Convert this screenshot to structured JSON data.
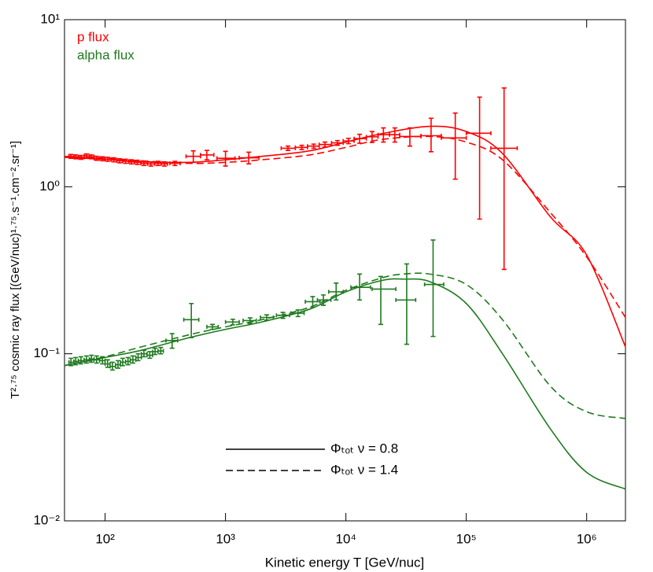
{
  "chart_data": {
    "type": "errorbar",
    "x_label": "Kinetic energy T [GeV/nuc]",
    "y_label": "T²·⁷⁵ cosmic ray flux [(GeV/nuc)¹·⁷⁵.s⁻¹.cm⁻².sr⁻¹]",
    "xscale": "log",
    "yscale": "log",
    "xlim": [
      46,
      2100000
    ],
    "ylim": [
      0.01,
      10
    ],
    "xticks": [
      {
        "value": 100,
        "label": "10²"
      },
      {
        "value": 1000,
        "label": "10³"
      },
      {
        "value": 10000,
        "label": "10⁴"
      },
      {
        "value": 100000,
        "label": "10⁵"
      },
      {
        "value": 1000000,
        "label": "10⁶"
      }
    ],
    "yticks": [
      {
        "value": 0.01,
        "label": "10⁻²"
      },
      {
        "value": 0.1,
        "label": "10⁻¹"
      },
      {
        "value": 1,
        "label": "10⁰"
      },
      {
        "value": 10,
        "label": "10¹"
      }
    ],
    "series": [
      {
        "name": "p flux",
        "color": "#ff0000",
        "x": [
          52,
          57,
          63,
          70,
          77,
          85,
          95,
          105,
          118,
          132,
          148,
          165,
          185,
          210,
          240,
          275,
          310,
          380,
          540,
          700,
          1000,
          1560,
          3300,
          4300,
          5400,
          6700,
          8500,
          10500,
          13000,
          16500,
          20500,
          25500,
          34000,
          51000,
          81000,
          129000,
          206000
        ],
        "values": [
          1.52,
          1.51,
          1.5,
          1.53,
          1.51,
          1.48,
          1.47,
          1.46,
          1.45,
          1.43,
          1.42,
          1.41,
          1.4,
          1.38,
          1.37,
          1.38,
          1.37,
          1.38,
          1.52,
          1.55,
          1.48,
          1.49,
          1.7,
          1.72,
          1.75,
          1.79,
          1.83,
          1.88,
          1.94,
          1.99,
          2.05,
          2.05,
          2.0,
          2.02,
          1.96,
          2.09,
          1.7
        ],
        "err_low": [
          0.04,
          0.04,
          0.04,
          0.04,
          0.04,
          0.04,
          0.04,
          0.04,
          0.04,
          0.04,
          0.04,
          0.04,
          0.04,
          0.04,
          0.04,
          0.04,
          0.04,
          0.04,
          0.12,
          0.1,
          0.15,
          0.12,
          0.05,
          0.05,
          0.05,
          0.06,
          0.06,
          0.07,
          0.12,
          0.15,
          0.2,
          0.2,
          0.25,
          0.4,
          0.85,
          1.45,
          1.38
        ],
        "err_high": [
          0.04,
          0.04,
          0.04,
          0.04,
          0.04,
          0.04,
          0.04,
          0.04,
          0.04,
          0.04,
          0.04,
          0.04,
          0.04,
          0.04,
          0.04,
          0.04,
          0.04,
          0.04,
          0.12,
          0.1,
          0.15,
          0.12,
          0.05,
          0.05,
          0.05,
          0.06,
          0.06,
          0.07,
          0.12,
          0.15,
          0.2,
          0.2,
          0.25,
          0.55,
          0.8,
          1.35,
          2.2
        ],
        "x_low": [
          50,
          55,
          60,
          67,
          74,
          81,
          90,
          100,
          112,
          125,
          140,
          157,
          175,
          198,
          225,
          258,
          292,
          345,
          470,
          620,
          850,
          1300,
          2900,
          3800,
          4800,
          6000,
          7600,
          9500,
          11700,
          14800,
          18500,
          23000,
          28000,
          42000,
          62000,
          100000,
          160000
        ],
        "x_high": [
          55,
          60,
          67,
          74,
          81,
          90,
          100,
          112,
          125,
          140,
          157,
          175,
          198,
          225,
          258,
          292,
          330,
          420,
          620,
          800,
          1200,
          1900,
          3800,
          4800,
          6000,
          7600,
          9500,
          11700,
          14800,
          18500,
          23000,
          28000,
          42000,
          62000,
          100000,
          160000,
          265000
        ]
      },
      {
        "name": "alpha flux",
        "color": "#1f7a1f",
        "x": [
          52,
          57,
          63,
          70,
          77,
          85,
          95,
          105,
          115,
          128,
          140,
          155,
          170,
          188,
          210,
          235,
          260,
          290,
          360,
          520,
          780,
          1150,
          1600,
          2200,
          3000,
          4000,
          5300,
          6500,
          8300,
          13000,
          19500,
          32000,
          53000
        ],
        "values": [
          0.089,
          0.09,
          0.091,
          0.092,
          0.093,
          0.092,
          0.091,
          0.087,
          0.084,
          0.086,
          0.089,
          0.09,
          0.092,
          0.095,
          0.1,
          0.098,
          0.103,
          0.104,
          0.12,
          0.16,
          0.145,
          0.155,
          0.158,
          0.165,
          0.17,
          0.175,
          0.205,
          0.21,
          0.235,
          0.25,
          0.244,
          0.21,
          0.26
        ],
        "err_low": [
          0.004,
          0.004,
          0.004,
          0.004,
          0.004,
          0.004,
          0.004,
          0.004,
          0.004,
          0.004,
          0.004,
          0.004,
          0.004,
          0.004,
          0.004,
          0.004,
          0.004,
          0.004,
          0.012,
          0.035,
          0.005,
          0.006,
          0.006,
          0.006,
          0.007,
          0.008,
          0.015,
          0.015,
          0.025,
          0.04,
          0.094,
          0.096,
          0.133
        ],
        "err_high": [
          0.005,
          0.005,
          0.005,
          0.005,
          0.005,
          0.005,
          0.005,
          0.005,
          0.005,
          0.005,
          0.005,
          0.005,
          0.005,
          0.005,
          0.005,
          0.005,
          0.005,
          0.005,
          0.012,
          0.04,
          0.005,
          0.006,
          0.006,
          0.006,
          0.007,
          0.008,
          0.015,
          0.015,
          0.03,
          0.05,
          0.046,
          0.135,
          0.22
        ],
        "x_low": [
          50,
          55,
          60,
          67,
          74,
          81,
          90,
          100,
          110,
          122,
          134,
          148,
          162,
          180,
          200,
          223,
          248,
          275,
          320,
          450,
          700,
          1000,
          1400,
          1950,
          2650,
          3500,
          4600,
          5800,
          7200,
          11000,
          16500,
          26000,
          45000
        ],
        "x_high": [
          55,
          60,
          67,
          74,
          81,
          90,
          100,
          110,
          122,
          134,
          148,
          162,
          180,
          200,
          223,
          248,
          275,
          305,
          400,
          600,
          870,
          1300,
          1800,
          2500,
          3400,
          4500,
          6100,
          7500,
          9500,
          16000,
          26000,
          38000,
          65000
        ]
      }
    ],
    "models": [
      {
        "label": "Φₜₒₜ ν = 0.8",
        "dashed": false,
        "curves": [
          {
            "color": "#ff0000",
            "x": [
              46,
              100,
              200,
              500,
              1000,
              2000,
              5000,
              10000,
              20000,
              50000,
              100000,
              200000,
              500000,
              1000000,
              2100000
            ],
            "values": [
              1.5,
              1.46,
              1.41,
              1.4,
              1.45,
              1.52,
              1.64,
              1.85,
              2.08,
              2.3,
              2.14,
              1.58,
              0.66,
              0.39,
              0.11
            ]
          },
          {
            "color": "#1f7a1f",
            "x": [
              46,
              100,
              200,
              500,
              1000,
              2000,
              5000,
              10000,
              20000,
              30000,
              50000,
              100000,
              200000,
              500000,
              1000000,
              2100000
            ],
            "values": [
              0.085,
              0.095,
              0.105,
              0.125,
              0.14,
              0.155,
              0.185,
              0.235,
              0.275,
              0.28,
              0.27,
              0.2,
              0.1,
              0.0355,
              0.0195,
              0.0155
            ]
          }
        ]
      },
      {
        "label": "Φₜₒₜ ν = 1.4",
        "dashed": true,
        "curves": [
          {
            "color": "#ff0000",
            "x": [
              46,
              100,
              200,
              500,
              1000,
              2000,
              5000,
              10000,
              20000,
              50000,
              100000,
              200000,
              500000,
              1000000,
              2100000
            ],
            "values": [
              1.52,
              1.48,
              1.43,
              1.38,
              1.4,
              1.45,
              1.55,
              1.72,
              1.92,
              2.0,
              1.85,
              1.45,
              0.7,
              0.38,
              0.165
            ]
          },
          {
            "color": "#1f7a1f",
            "x": [
              46,
              100,
              200,
              500,
              1000,
              2000,
              5000,
              10000,
              20000,
              30000,
              50000,
              100000,
              200000,
              500000,
              1000000,
              2100000
            ],
            "values": [
              0.085,
              0.096,
              0.11,
              0.13,
              0.145,
              0.16,
              0.19,
              0.24,
              0.285,
              0.3,
              0.3,
              0.26,
              0.16,
              0.064,
              0.045,
              0.041
            ]
          }
        ]
      }
    ]
  }
}
